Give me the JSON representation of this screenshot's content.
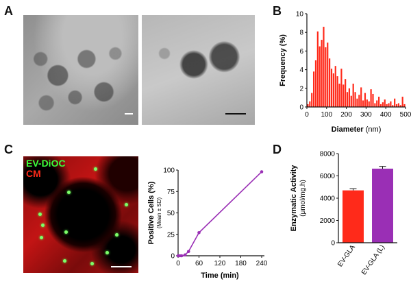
{
  "figure": {
    "panels": {
      "a": {
        "letter": "A"
      },
      "b": {
        "letter": "B"
      },
      "c": {
        "letter": "C"
      },
      "d": {
        "letter": "D"
      }
    },
    "micrograph_labels": {
      "green": "EV-DiOC",
      "red": "CM"
    },
    "colors": {
      "red_bar": "#ff2a1a",
      "purple": "#9a2fb5",
      "green_label": "#3cff3c",
      "red_label": "#ff2a1a"
    }
  },
  "chart_data": [
    {
      "id": "B",
      "type": "bar",
      "xlabel": "Diameter",
      "xlabel_unit": "(nm)",
      "ylabel": "Frequency (%)",
      "xlim": [
        0,
        500
      ],
      "ylim": [
        0,
        10
      ],
      "xticks": [
        0,
        100,
        200,
        300,
        400,
        500
      ],
      "yticks": [
        0,
        2,
        4,
        6,
        8,
        10
      ],
      "bin_width": 10,
      "x": [
        5,
        15,
        25,
        35,
        45,
        55,
        65,
        75,
        85,
        95,
        105,
        115,
        125,
        135,
        145,
        155,
        165,
        175,
        185,
        195,
        205,
        215,
        225,
        235,
        245,
        255,
        265,
        275,
        285,
        295,
        305,
        315,
        325,
        335,
        345,
        355,
        365,
        375,
        385,
        395,
        405,
        415,
        425,
        435,
        445,
        455,
        465,
        475,
        485,
        495
      ],
      "values": [
        0.3,
        0.6,
        1.5,
        3.8,
        5.0,
        8.1,
        6.5,
        7.2,
        8.6,
        6.4,
        6.9,
        5.2,
        4.1,
        3.6,
        4.4,
        3.3,
        2.5,
        4.1,
        2.4,
        3.0,
        1.6,
        2.0,
        1.2,
        2.5,
        1.6,
        0.9,
        1.3,
        2.1,
        0.7,
        1.5,
        0.8,
        0.6,
        1.9,
        1.4,
        0.4,
        0.7,
        1.1,
        0.3,
        0.5,
        0.8,
        0.3,
        0.4,
        0.6,
        0.2,
        0.9,
        0.3,
        0.4,
        0.2,
        1.1,
        0.3
      ]
    },
    {
      "id": "C",
      "type": "line",
      "xlabel": "Time (min)",
      "ylabel": "Positive Cells (%)",
      "ylabel_sub": "(Mean ± SD)",
      "xlim": [
        0,
        240
      ],
      "ylim": [
        0,
        100
      ],
      "xticks": [
        0,
        60,
        120,
        180,
        240
      ],
      "yticks": [
        0,
        25,
        50,
        75,
        100
      ],
      "x": [
        0,
        5,
        10,
        20,
        30,
        60,
        240
      ],
      "y": [
        0,
        0,
        0,
        1,
        5,
        27,
        98
      ]
    },
    {
      "id": "D",
      "type": "bar",
      "ylabel": "Enzymatic Activity",
      "ylabel_unit": "(μmol/mg.h)",
      "ylim": [
        0,
        8000
      ],
      "yticks": [
        0,
        2000,
        4000,
        6000,
        8000
      ],
      "categories": [
        "EV-GLA",
        "EV-GLA (L)"
      ],
      "values": [
        4700,
        6650
      ],
      "errors": [
        150,
        200
      ]
    }
  ]
}
